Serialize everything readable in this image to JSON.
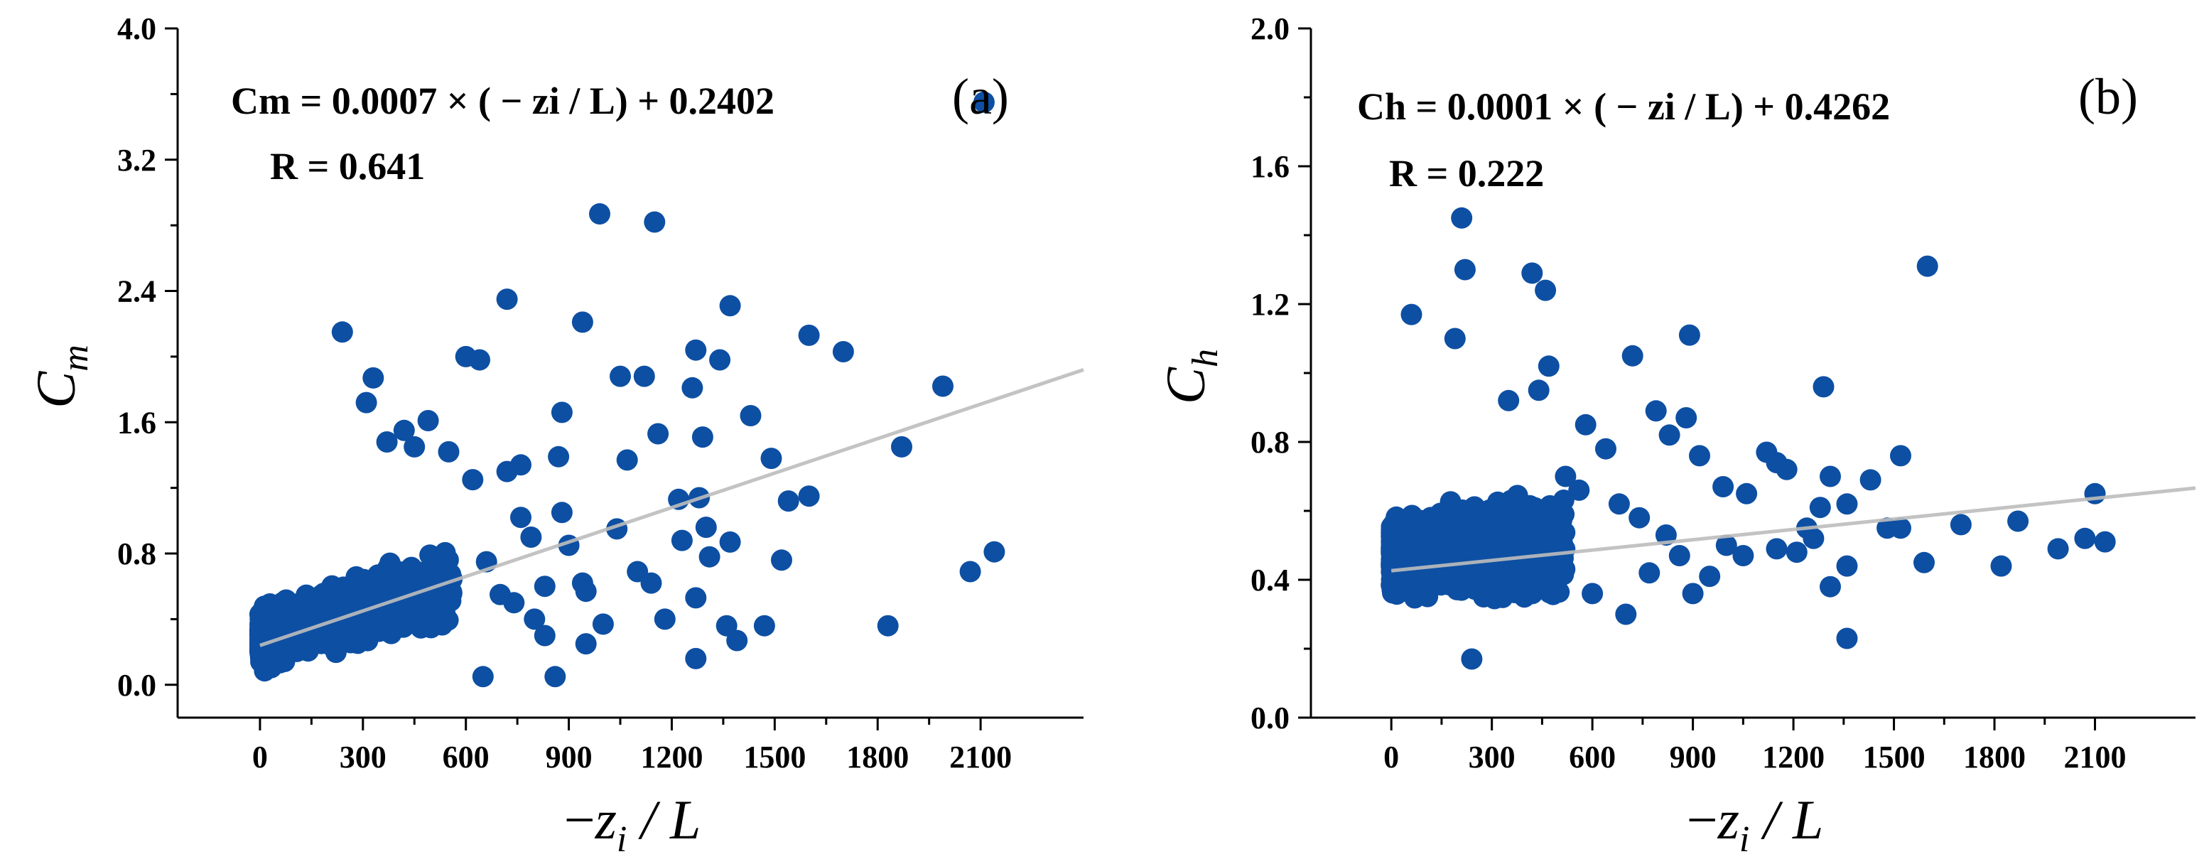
{
  "colors": {
    "points": "#0d4fa3",
    "fit_line": "#bdbdbd"
  },
  "chart_data": [
    {
      "type": "scatter",
      "panel_label": "(a)",
      "equation": "Cm = 0.0007 × ( − zi / L) + 0.2402",
      "r_text": "R = 0.641",
      "xlabel_parts": {
        "minus": "−",
        "var": "z",
        "sub": "i",
        "rest": " / L"
      },
      "ylabel_parts": {
        "var": "C",
        "sub": "m"
      },
      "xlim": [
        -240,
        2400
      ],
      "ylim": [
        -0.2,
        4.0
      ],
      "xticks": [
        0,
        300,
        600,
        900,
        1200,
        1500,
        1800,
        2100
      ],
      "xtick_labels": [
        "0",
        "300",
        "600",
        "900",
        "1200",
        "1500",
        "1800",
        "2100"
      ],
      "yticks": [
        0.0,
        0.8,
        1.6,
        2.4,
        3.2,
        4.0
      ],
      "ytick_labels": [
        "0.0",
        "0.8",
        "1.6",
        "2.4",
        "3.2",
        "4.0"
      ],
      "fit": {
        "slope": 0.0007,
        "intercept": 0.2402,
        "x_range": [
          0,
          2400
        ]
      },
      "cluster": {
        "n": 1100,
        "seed": 7,
        "xmax": 560,
        "base_mean": 0.28,
        "slope": 0.0006,
        "spread": 0.22,
        "ymin": 0.01,
        "ymax": 1.1
      },
      "points": [
        [
          2110,
          3.55
        ],
        [
          990,
          2.87
        ],
        [
          1150,
          2.82
        ],
        [
          720,
          2.35
        ],
        [
          940,
          2.21
        ],
        [
          1370,
          2.31
        ],
        [
          240,
          2.15
        ],
        [
          1600,
          2.13
        ],
        [
          1700,
          2.03
        ],
        [
          1270,
          2.04
        ],
        [
          1340,
          1.98
        ],
        [
          600,
          2.0
        ],
        [
          640,
          1.98
        ],
        [
          1050,
          1.88
        ],
        [
          1120,
          1.88
        ],
        [
          1990,
          1.82
        ],
        [
          1260,
          1.81
        ],
        [
          330,
          1.87
        ],
        [
          880,
          1.66
        ],
        [
          1430,
          1.64
        ],
        [
          1160,
          1.53
        ],
        [
          490,
          1.61
        ],
        [
          310,
          1.72
        ],
        [
          1870,
          1.45
        ],
        [
          1490,
          1.38
        ],
        [
          1070,
          1.37
        ],
        [
          1290,
          1.51
        ],
        [
          870,
          1.39
        ],
        [
          1600,
          1.15
        ],
        [
          1220,
          1.13
        ],
        [
          1540,
          1.12
        ],
        [
          1280,
          1.14
        ],
        [
          760,
          1.34
        ],
        [
          720,
          1.3
        ],
        [
          1040,
          0.95
        ],
        [
          1230,
          0.88
        ],
        [
          1300,
          0.96
        ],
        [
          1370,
          0.87
        ],
        [
          940,
          0.62
        ],
        [
          1100,
          0.69
        ],
        [
          1140,
          0.62
        ],
        [
          1180,
          0.4
        ],
        [
          2140,
          0.81
        ],
        [
          2070,
          0.69
        ],
        [
          1520,
          0.76
        ],
        [
          1830,
          0.36
        ],
        [
          1360,
          0.36
        ],
        [
          1270,
          0.16
        ],
        [
          1000,
          0.37
        ],
        [
          950,
          0.25
        ],
        [
          860,
          0.05
        ],
        [
          650,
          0.05
        ],
        [
          800,
          0.4
        ],
        [
          830,
          0.3
        ],
        [
          700,
          0.55
        ],
        [
          790,
          0.9
        ],
        [
          900,
          0.85
        ],
        [
          830,
          0.6
        ],
        [
          660,
          0.75
        ],
        [
          740,
          0.5
        ],
        [
          1310,
          0.78
        ],
        [
          1390,
          0.27
        ],
        [
          1270,
          0.53
        ],
        [
          1470,
          0.36
        ],
        [
          950,
          0.57
        ],
        [
          880,
          1.05
        ],
        [
          760,
          1.02
        ],
        [
          620,
          1.25
        ],
        [
          550,
          1.42
        ],
        [
          450,
          1.45
        ],
        [
          420,
          1.55
        ],
        [
          370,
          1.48
        ]
      ]
    },
    {
      "type": "scatter",
      "panel_label": "(b)",
      "equation": "Ch = 0.0001 × ( − zi / L) + 0.4262",
      "r_text": "R = 0.222",
      "xlabel_parts": {
        "minus": "−",
        "var": "z",
        "sub": "i",
        "rest": " / L"
      },
      "ylabel_parts": {
        "var": "C",
        "sub": "h"
      },
      "xlim": [
        -240,
        2400
      ],
      "ylim": [
        0.0,
        2.0
      ],
      "xticks": [
        0,
        300,
        600,
        900,
        1200,
        1500,
        1800,
        2100
      ],
      "xtick_labels": [
        "0",
        "300",
        "600",
        "900",
        "1200",
        "1500",
        "1800",
        "2100"
      ],
      "yticks": [
        0.0,
        0.4,
        0.8,
        1.2,
        1.6,
        2.0
      ],
      "ytick_labels": [
        "0.0",
        "0.4",
        "0.8",
        "1.2",
        "1.6",
        "2.0"
      ],
      "fit": {
        "slope": 0.0001,
        "intercept": 0.4262,
        "x_range": [
          0,
          2400
        ]
      },
      "cluster": {
        "n": 1100,
        "seed": 13,
        "xmax": 520,
        "base_mean": 0.47,
        "slope": 5e-05,
        "spread": 0.14,
        "ymin": 0.15,
        "ymax": 0.95
      },
      "points": [
        [
          210,
          1.45
        ],
        [
          1600,
          1.31
        ],
        [
          220,
          1.3
        ],
        [
          420,
          1.29
        ],
        [
          460,
          1.24
        ],
        [
          60,
          1.17
        ],
        [
          890,
          1.11
        ],
        [
          190,
          1.1
        ],
        [
          720,
          1.05
        ],
        [
          470,
          1.02
        ],
        [
          1290,
          0.96
        ],
        [
          580,
          0.85
        ],
        [
          790,
          0.89
        ],
        [
          880,
          0.87
        ],
        [
          350,
          0.92
        ],
        [
          640,
          0.78
        ],
        [
          920,
          0.76
        ],
        [
          1120,
          0.77
        ],
        [
          1520,
          0.76
        ],
        [
          1150,
          0.74
        ],
        [
          830,
          0.82
        ],
        [
          990,
          0.67
        ],
        [
          1060,
          0.65
        ],
        [
          1180,
          0.72
        ],
        [
          1310,
          0.7
        ],
        [
          1360,
          0.62
        ],
        [
          1430,
          0.69
        ],
        [
          1240,
          0.55
        ],
        [
          1280,
          0.61
        ],
        [
          2100,
          0.65
        ],
        [
          1700,
          0.56
        ],
        [
          1870,
          0.57
        ],
        [
          1480,
          0.55
        ],
        [
          1520,
          0.55
        ],
        [
          1820,
          0.44
        ],
        [
          1990,
          0.49
        ],
        [
          2070,
          0.52
        ],
        [
          2130,
          0.51
        ],
        [
          1590,
          0.45
        ],
        [
          1360,
          0.44
        ],
        [
          1310,
          0.38
        ],
        [
          1360,
          0.23
        ],
        [
          240,
          0.17
        ],
        [
          700,
          0.3
        ],
        [
          900,
          0.36
        ],
        [
          950,
          0.41
        ],
        [
          1050,
          0.47
        ],
        [
          1150,
          0.49
        ],
        [
          1210,
          0.48
        ],
        [
          1260,
          0.52
        ],
        [
          1000,
          0.5
        ],
        [
          770,
          0.42
        ],
        [
          820,
          0.53
        ],
        [
          860,
          0.47
        ],
        [
          680,
          0.62
        ],
        [
          740,
          0.58
        ],
        [
          600,
          0.36
        ],
        [
          560,
          0.66
        ],
        [
          520,
          0.7
        ],
        [
          440,
          0.95
        ]
      ]
    }
  ]
}
